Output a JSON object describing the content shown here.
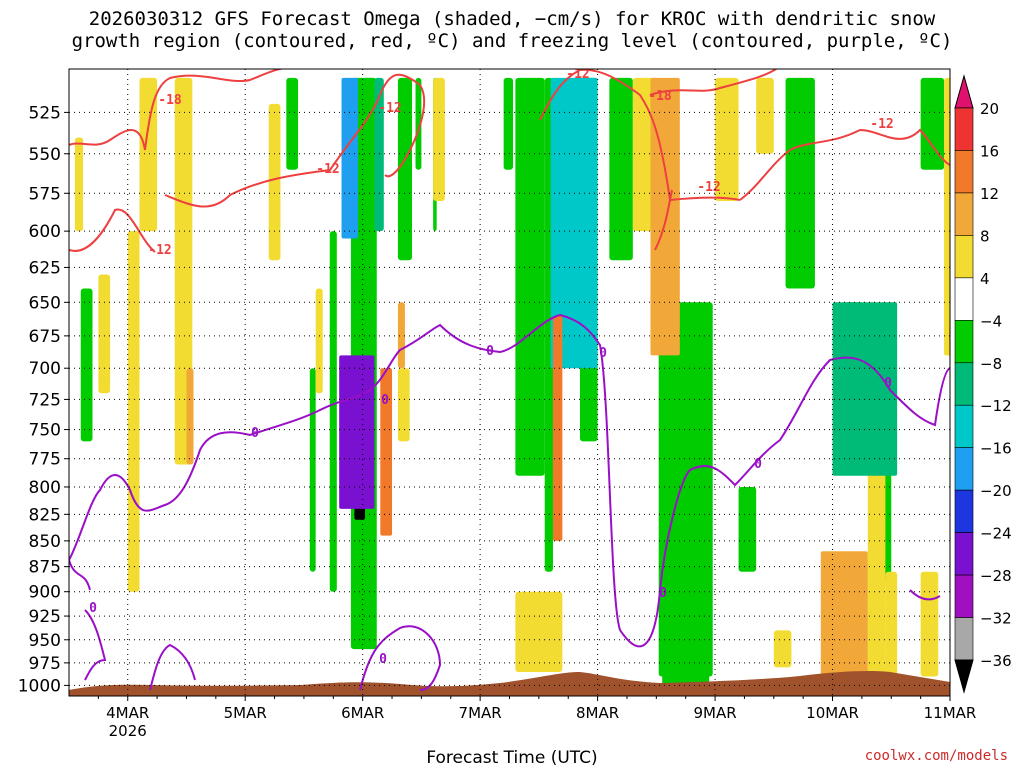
{
  "title_line1": "2026030312 GFS Forecast Omega (shaded, −cm/s) for KROC with dendritic snow",
  "title_line2": "growth region (contoured, red, ºC) and freezing level (contoured, purple, ºC)",
  "xlabel": "Forecast Time (UTC)",
  "credit": "coolwx.com/models",
  "chart_data": {
    "type": "heatmap",
    "x_axis": {
      "labels": [
        "4MAR",
        "5MAR",
        "6MAR",
        "7MAR",
        "8MAR",
        "9MAR",
        "10MAR",
        "11MAR"
      ],
      "sublabel": "2026",
      "range_days": [
        3.5,
        11.0
      ]
    },
    "y_axis": {
      "labels": [
        "525",
        "550",
        "575",
        "600",
        "625",
        "650",
        "675",
        "700",
        "725",
        "750",
        "775",
        "800",
        "825",
        "850",
        "875",
        "900",
        "925",
        "950",
        "975",
        "1000"
      ],
      "range_hPa": [
        500,
        1012
      ],
      "scale": "log-pressure"
    },
    "grid": "dotted",
    "colorbar": {
      "labels": [
        "20",
        "16",
        "12",
        "8",
        "4",
        "−4",
        "−8",
        "−12",
        "−16",
        "−20",
        "−24",
        "−28",
        "−32",
        "−36"
      ],
      "colors": [
        "#e0106e",
        "#ee3333",
        "#f07a2a",
        "#f2a838",
        "#f2dc32",
        "#ffffff",
        "#00cc00",
        "#00bb77",
        "#00c8c8",
        "#1e9ff0",
        "#1e36e0",
        "#7a10d0",
        "#a010c0",
        "#a8a8a8",
        "#000000"
      ]
    },
    "contours": {
      "dendritic_growth_labels": [
        "-18",
        "-12",
        "-12",
        "-12",
        "-18",
        "-12",
        "-12",
        "-12"
      ],
      "freezing_level_labels": [
        "0",
        "0",
        "0",
        "0",
        "0",
        "0",
        "0",
        "0",
        "0"
      ],
      "dendritic_color": "#ee4040",
      "freezing_color": "#9a10c8",
      "terrain_color": "#a0522d"
    },
    "features": [
      {
        "kind": "omega",
        "x": [
          5.93,
          6.02
        ],
        "p": [
          700,
          830
        ],
        "value": -36
      },
      {
        "kind": "omega",
        "x": [
          5.8,
          6.1
        ],
        "p": [
          690,
          820
        ],
        "value": -26
      },
      {
        "kind": "omega",
        "x": [
          5.82,
          5.96
        ],
        "p": [
          505,
          605
        ],
        "value": -16
      },
      {
        "kind": "omega",
        "x": [
          7.75,
          7.85
        ],
        "p": [
          505,
          680
        ],
        "value": -16
      },
      {
        "kind": "omega",
        "x": [
          7.6,
          8.0
        ],
        "p": [
          505,
          700
        ],
        "value": -12
      },
      {
        "kind": "omega",
        "x": [
          6.15,
          6.25
        ],
        "p": [
          700,
          845
        ],
        "value": 14
      },
      {
        "kind": "omega",
        "x": [
          7.62,
          7.7
        ],
        "p": [
          660,
          850
        ],
        "value": 14
      },
      {
        "kind": "omega",
        "x": [
          8.45,
          8.7
        ],
        "p": [
          505,
          690
        ],
        "value": 10
      },
      {
        "kind": "omega",
        "x": [
          9.9,
          10.3
        ],
        "p": [
          860,
          1000
        ],
        "value": 8
      },
      {
        "kind": "omega",
        "x": [
          10.0,
          10.55
        ],
        "p": [
          650,
          790
        ],
        "value": -8
      },
      {
        "kind": "omega",
        "x": [
          8.55,
          8.95
        ],
        "p": [
          720,
          1000
        ],
        "value": -6
      },
      {
        "kind": "omega",
        "x": [
          10.95,
          11.05
        ],
        "p": [
          520,
          690
        ],
        "value": 5
      }
    ]
  }
}
